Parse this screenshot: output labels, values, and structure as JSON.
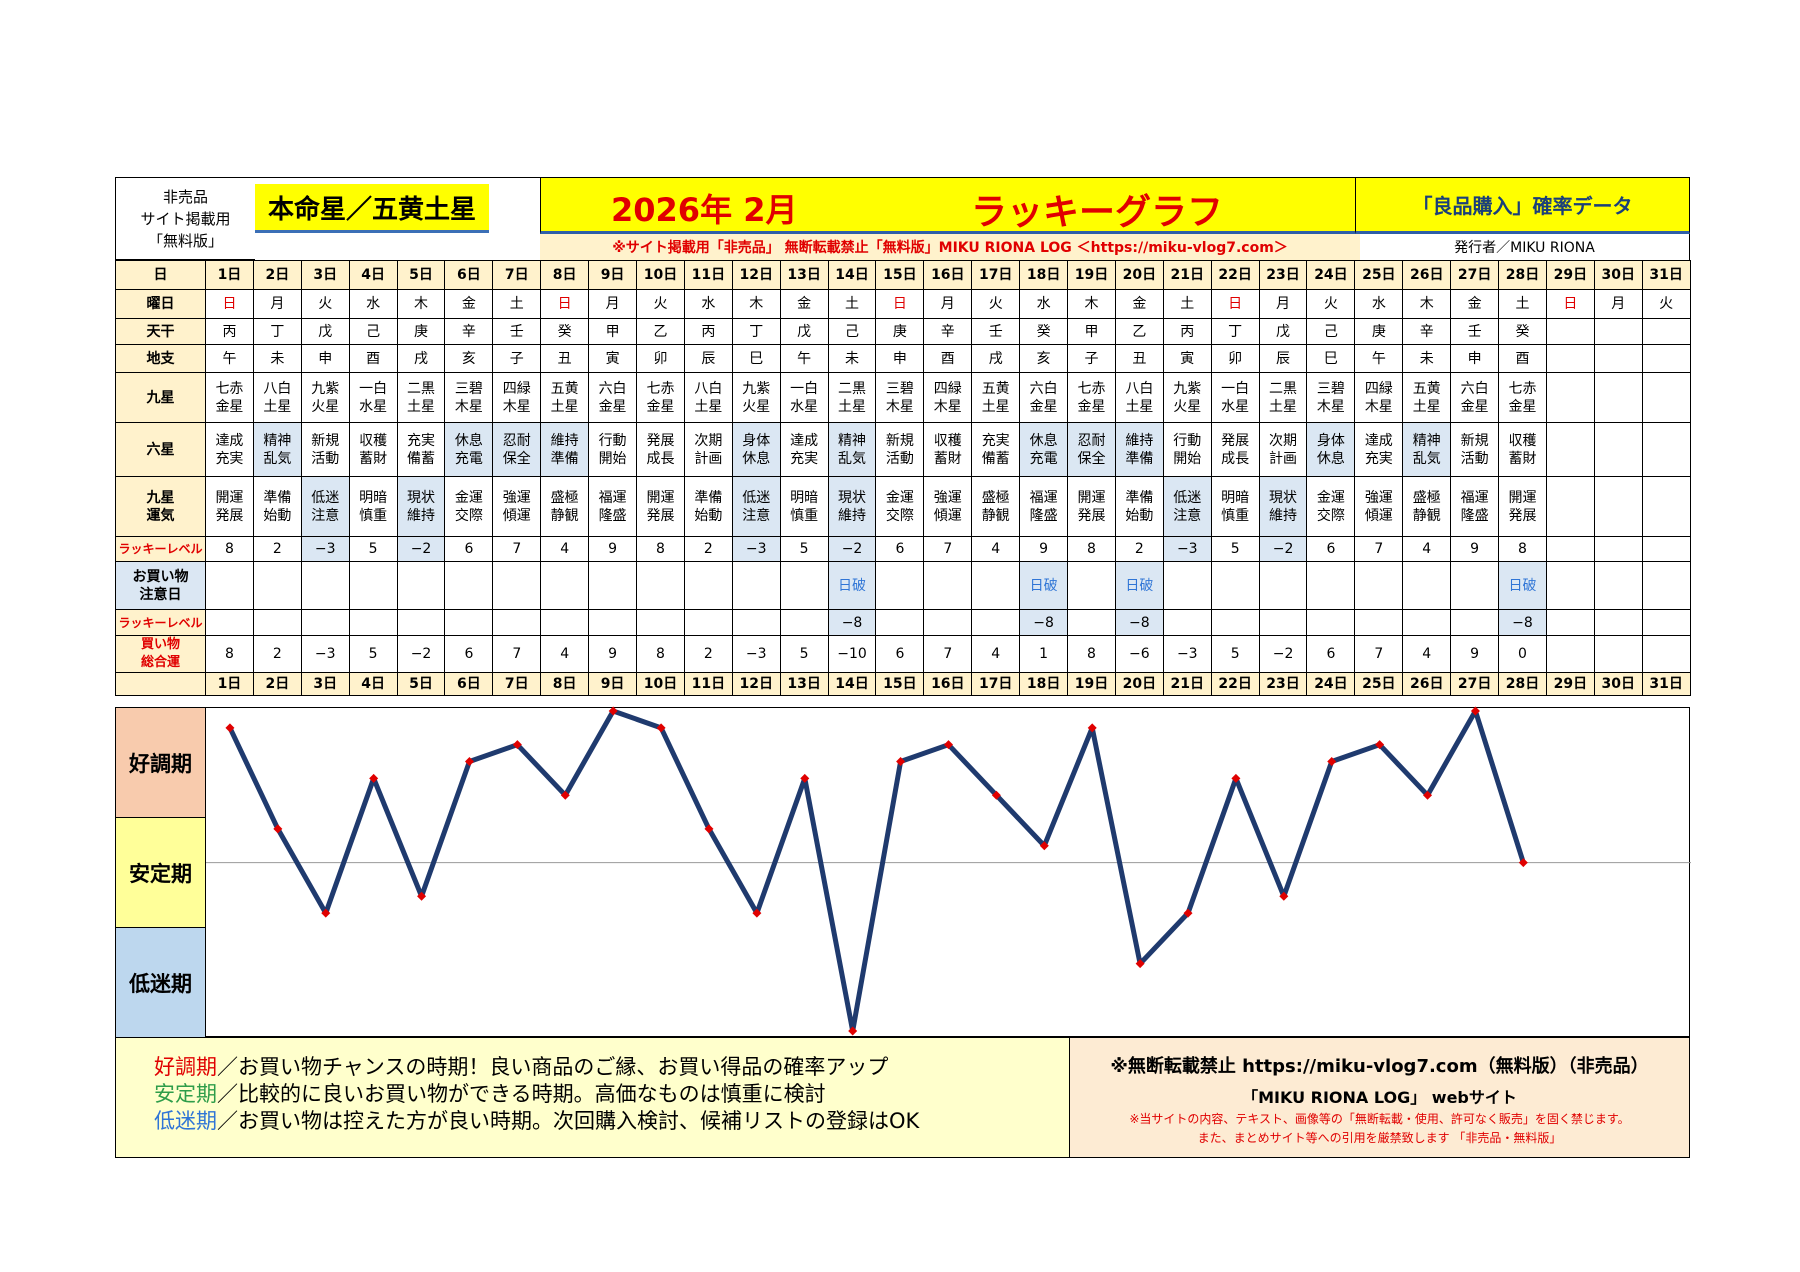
{
  "header": {
    "left_lines": [
      "非売品",
      "サイト掲載用",
      "「無料版」"
    ],
    "honmei": "本命星／五黄土星",
    "month": "2026年 2月",
    "title": "ラッキーグラフ",
    "ryohin": "「良品購入」確率データ",
    "notice": "※サイト掲載用「非売品」 無断転載禁止「無料版」MIKU RIONA LOG ＜https://miku-vlog7.com＞",
    "publisher": "発行者／MIKU RIONA"
  },
  "row_labels": {
    "day": "日",
    "weekday": "曜日",
    "tenkan": "天干",
    "chishi": "地支",
    "kyusei": "九星",
    "rokusei": "六星",
    "unki": "九星\n運気",
    "lucky": "ラッキーレベル",
    "caution": "お買い物\n注意日",
    "lucky2": "ラッキーレベル",
    "total": "買い物\n総合運"
  },
  "days": [
    "1日",
    "2日",
    "3日",
    "4日",
    "5日",
    "6日",
    "7日",
    "8日",
    "9日",
    "10日",
    "11日",
    "12日",
    "13日",
    "14日",
    "15日",
    "16日",
    "17日",
    "18日",
    "19日",
    "20日",
    "21日",
    "22日",
    "23日",
    "24日",
    "25日",
    "26日",
    "27日",
    "28日",
    "29日",
    "30日",
    "31日"
  ],
  "weekdays": [
    "日",
    "月",
    "火",
    "水",
    "木",
    "金",
    "土",
    "日",
    "月",
    "火",
    "水",
    "木",
    "金",
    "土",
    "日",
    "月",
    "火",
    "水",
    "木",
    "金",
    "土",
    "日",
    "月",
    "火",
    "水",
    "木",
    "金",
    "土",
    "日",
    "月",
    "火"
  ],
  "tenkan": [
    "丙",
    "丁",
    "戊",
    "己",
    "庚",
    "辛",
    "壬",
    "癸",
    "甲",
    "乙",
    "丙",
    "丁",
    "戊",
    "己",
    "庚",
    "辛",
    "壬",
    "癸",
    "甲",
    "乙",
    "丙",
    "丁",
    "戊",
    "己",
    "庚",
    "辛",
    "壬",
    "癸",
    "",
    "",
    ""
  ],
  "chishi": [
    "午",
    "未",
    "申",
    "酉",
    "戌",
    "亥",
    "子",
    "丑",
    "寅",
    "卯",
    "辰",
    "巳",
    "午",
    "未",
    "申",
    "酉",
    "戌",
    "亥",
    "子",
    "丑",
    "寅",
    "卯",
    "辰",
    "巳",
    "午",
    "未",
    "申",
    "酉",
    "",
    "",
    ""
  ],
  "kyusei": [
    "七赤\n金星",
    "八白\n土星",
    "九紫\n火星",
    "一白\n水星",
    "二黒\n土星",
    "三碧\n木星",
    "四緑\n木星",
    "五黄\n土星",
    "六白\n金星",
    "七赤\n金星",
    "八白\n土星",
    "九紫\n火星",
    "一白\n水星",
    "二黒\n土星",
    "三碧\n木星",
    "四緑\n木星",
    "五黄\n土星",
    "六白\n金星",
    "七赤\n金星",
    "八白\n土星",
    "九紫\n火星",
    "一白\n水星",
    "二黒\n土星",
    "三碧\n木星",
    "四緑\n木星",
    "五黄\n土星",
    "六白\n金星",
    "七赤\n金星",
    "",
    "",
    ""
  ],
  "rokusei": [
    "達成\n充実",
    "精神\n乱気",
    "新規\n活動",
    "収穫\n蓄財",
    "充実\n備蓄",
    "休息\n充電",
    "忍耐\n保全",
    "維持\n準備",
    "行動\n開始",
    "発展\n成長",
    "次期\n計画",
    "身体\n休息",
    "達成\n充実",
    "精神\n乱気",
    "新規\n活動",
    "収穫\n蓄財",
    "充実\n備蓄",
    "休息\n充電",
    "忍耐\n保全",
    "維持\n準備",
    "行動\n開始",
    "発展\n成長",
    "次期\n計画",
    "身体\n休息",
    "達成\n充実",
    "精神\n乱気",
    "新規\n活動",
    "収穫\n蓄財",
    "",
    "",
    ""
  ],
  "rokusei_hl": [
    false,
    true,
    false,
    false,
    false,
    true,
    true,
    true,
    false,
    false,
    false,
    true,
    false,
    true,
    false,
    false,
    false,
    true,
    true,
    true,
    false,
    false,
    false,
    true,
    false,
    true,
    false,
    false,
    false,
    false,
    false
  ],
  "unki": [
    "開運\n発展",
    "準備\n始動",
    "低迷\n注意",
    "明暗\n慎重",
    "現状\n維持",
    "金運\n交際",
    "強運\n傾運",
    "盛極\n静観",
    "福運\n隆盛",
    "開運\n発展",
    "準備\n始動",
    "低迷\n注意",
    "明暗\n慎重",
    "現状\n維持",
    "金運\n交際",
    "強運\n傾運",
    "盛極\n静観",
    "福運\n隆盛",
    "開運\n発展",
    "準備\n始動",
    "低迷\n注意",
    "明暗\n慎重",
    "現状\n維持",
    "金運\n交際",
    "強運\n傾運",
    "盛極\n静観",
    "福運\n隆盛",
    "開運\n発展",
    "",
    "",
    ""
  ],
  "lucky": [
    "8",
    "2",
    "−3",
    "5",
    "−2",
    "6",
    "7",
    "4",
    "9",
    "8",
    "2",
    "−3",
    "5",
    "−2",
    "6",
    "7",
    "4",
    "9",
    "8",
    "2",
    "−3",
    "5",
    "−2",
    "6",
    "7",
    "4",
    "9",
    "8",
    "",
    "",
    ""
  ],
  "caution": [
    "",
    "",
    "",
    "",
    "",
    "",
    "",
    "",
    "",
    "",
    "",
    "",
    "",
    "日破",
    "",
    "",
    "",
    "日破",
    "",
    "日破",
    "",
    "",
    "",
    "",
    "",
    "",
    "",
    "日破",
    "",
    "",
    ""
  ],
  "lucky2": [
    "",
    "",
    "",
    "",
    "",
    "",
    "",
    "",
    "",
    "",
    "",
    "",
    "",
    "−8",
    "",
    "",
    "",
    "−8",
    "",
    "−8",
    "",
    "",
    "",
    "",
    "",
    "",
    "",
    "−8",
    "",
    "",
    ""
  ],
  "total": [
    "8",
    "2",
    "−3",
    "5",
    "−2",
    "6",
    "7",
    "4",
    "9",
    "8",
    "2",
    "−3",
    "5",
    "−10",
    "6",
    "7",
    "4",
    "1",
    "8",
    "−6",
    "−3",
    "5",
    "−2",
    "6",
    "7",
    "4",
    "9",
    "0",
    "",
    "",
    ""
  ],
  "zones": {
    "good": "好調期",
    "stable": "安定期",
    "low": "低迷期"
  },
  "colors": {
    "line": "#1f3a6e",
    "marker": "#e00000",
    "good": "#f8cbad",
    "stable": "#ffff99",
    "low": "#bdd7ee"
  },
  "chart_data": {
    "type": "line",
    "x": [
      1,
      2,
      3,
      4,
      5,
      6,
      7,
      8,
      9,
      10,
      11,
      12,
      13,
      14,
      15,
      16,
      17,
      18,
      19,
      20,
      21,
      22,
      23,
      24,
      25,
      26,
      27,
      28
    ],
    "categories": [
      "1日",
      "2日",
      "3日",
      "4日",
      "5日",
      "6日",
      "7日",
      "8日",
      "9日",
      "10日",
      "11日",
      "12日",
      "13日",
      "14日",
      "15日",
      "16日",
      "17日",
      "18日",
      "19日",
      "20日",
      "21日",
      "22日",
      "23日",
      "24日",
      "25日",
      "26日",
      "27日",
      "28日"
    ],
    "values": [
      8,
      2,
      -3,
      5,
      -2,
      6,
      7,
      4,
      9,
      8,
      2,
      -3,
      5,
      -10,
      6,
      7,
      4,
      1,
      8,
      -6,
      -3,
      5,
      -2,
      6,
      7,
      4,
      9,
      0
    ],
    "ylim": [
      -10,
      9
    ],
    "grid": false
  },
  "footer": {
    "good_label": "好調期",
    "good_text": "／お買い物チャンスの時期！良い商品のご縁、お買い得品の確率アップ",
    "stable_label": "安定期",
    "stable_text": "／比較的に良いお買い物ができる時期。高価なものは慎重に検討",
    "low_label": "低迷期",
    "low_text": "／お買い物は控えた方が良い時期。次回購入検討、候補リストの登録はOK",
    "right_1": "※無断転載禁止 https://miku-vlog7.com（無料版）（非売品）",
    "right_2": "「MIKU RIONA LOG」 webサイト",
    "right_3": "※当サイトの内容、テキスト、画像等の「無断転載・使用、許可なく販売」を固く禁じます。",
    "right_4": "また、まとめサイト等への引用を厳禁致します 「非売品・無料版」"
  }
}
